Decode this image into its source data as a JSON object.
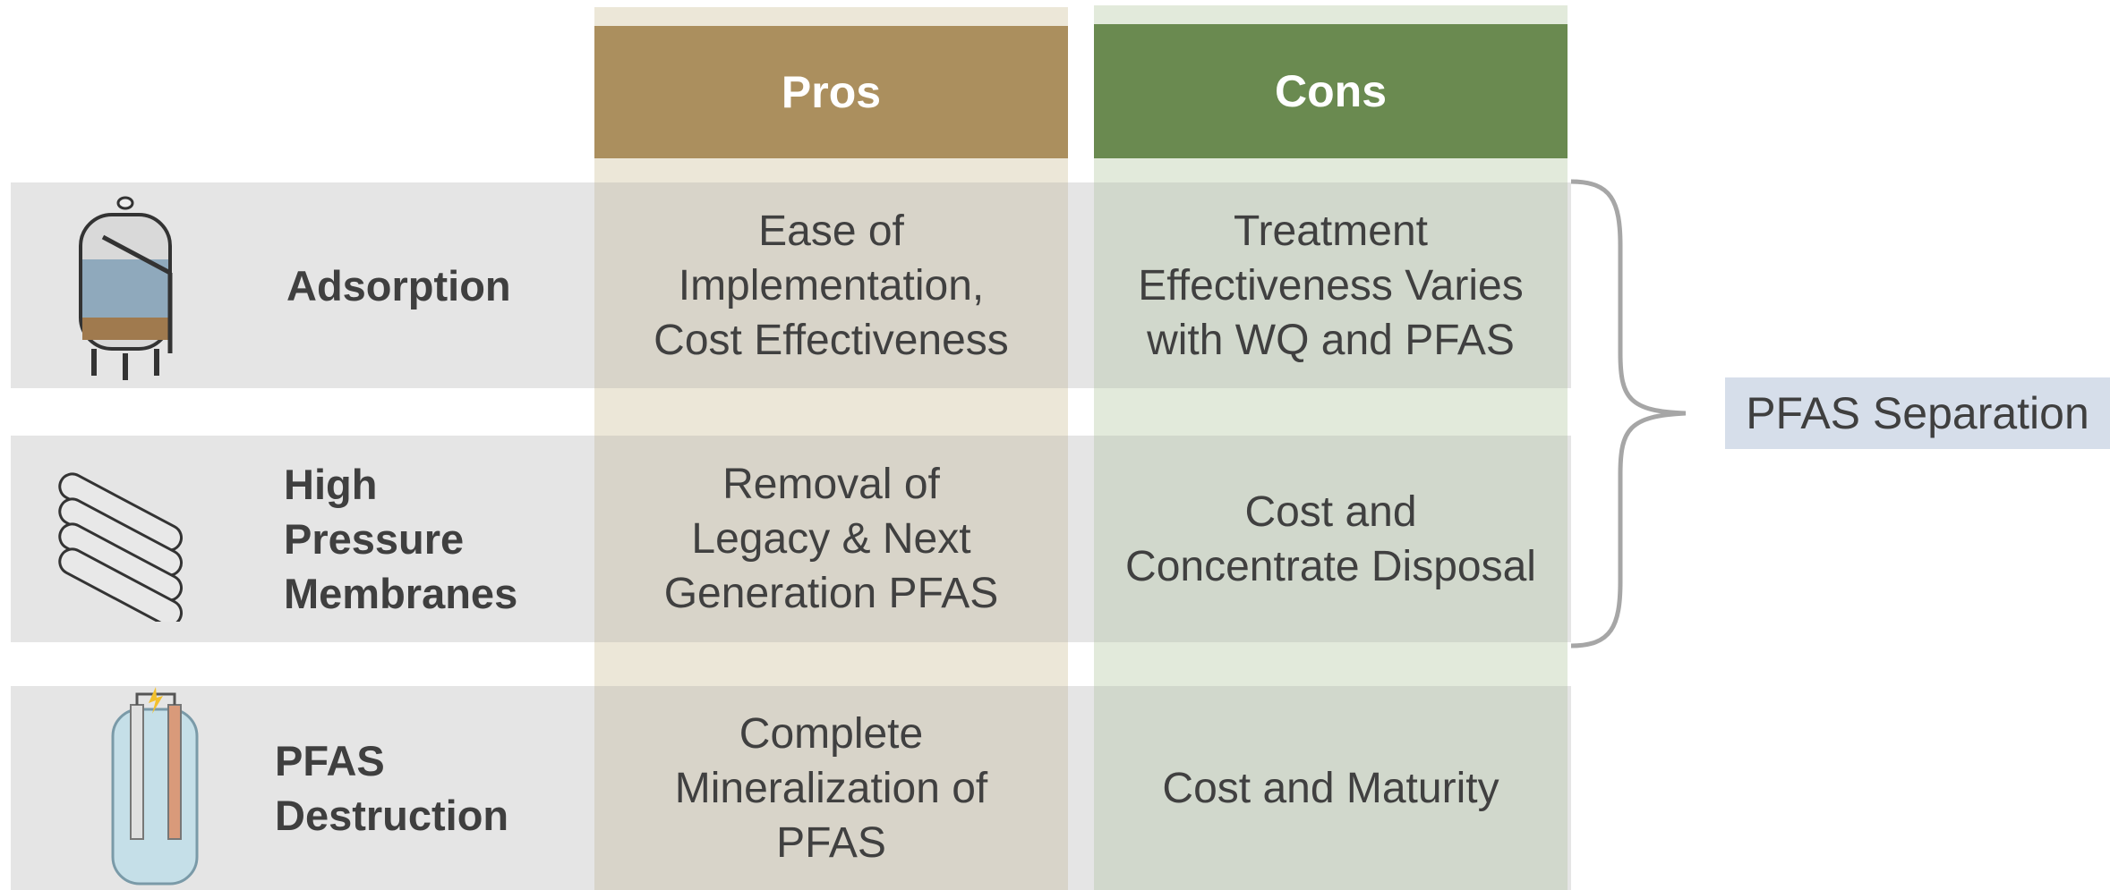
{
  "header": {
    "columns": [
      "Pros",
      "Cons"
    ]
  },
  "rows": [
    {
      "label": [
        "Adsorption"
      ],
      "pros": [
        "Ease of",
        "Implementation,",
        "Cost Effectiveness"
      ],
      "cons": [
        "Treatment",
        "Effectiveness Varies",
        "with WQ and PFAS"
      ]
    },
    {
      "label": [
        "High",
        "Pressure",
        "Membranes"
      ],
      "pros": [
        "Removal of",
        "Legacy & Next",
        "Generation PFAS"
      ],
      "cons": [
        "Cost and",
        "Concentrate Disposal"
      ]
    },
    {
      "label": [
        "PFAS",
        "Destruction"
      ],
      "pros": [
        "Complete",
        "Mineralization of",
        "PFAS"
      ],
      "cons": [
        "Cost and Maturity"
      ]
    }
  ],
  "group": {
    "label": "PFAS Separation"
  }
}
